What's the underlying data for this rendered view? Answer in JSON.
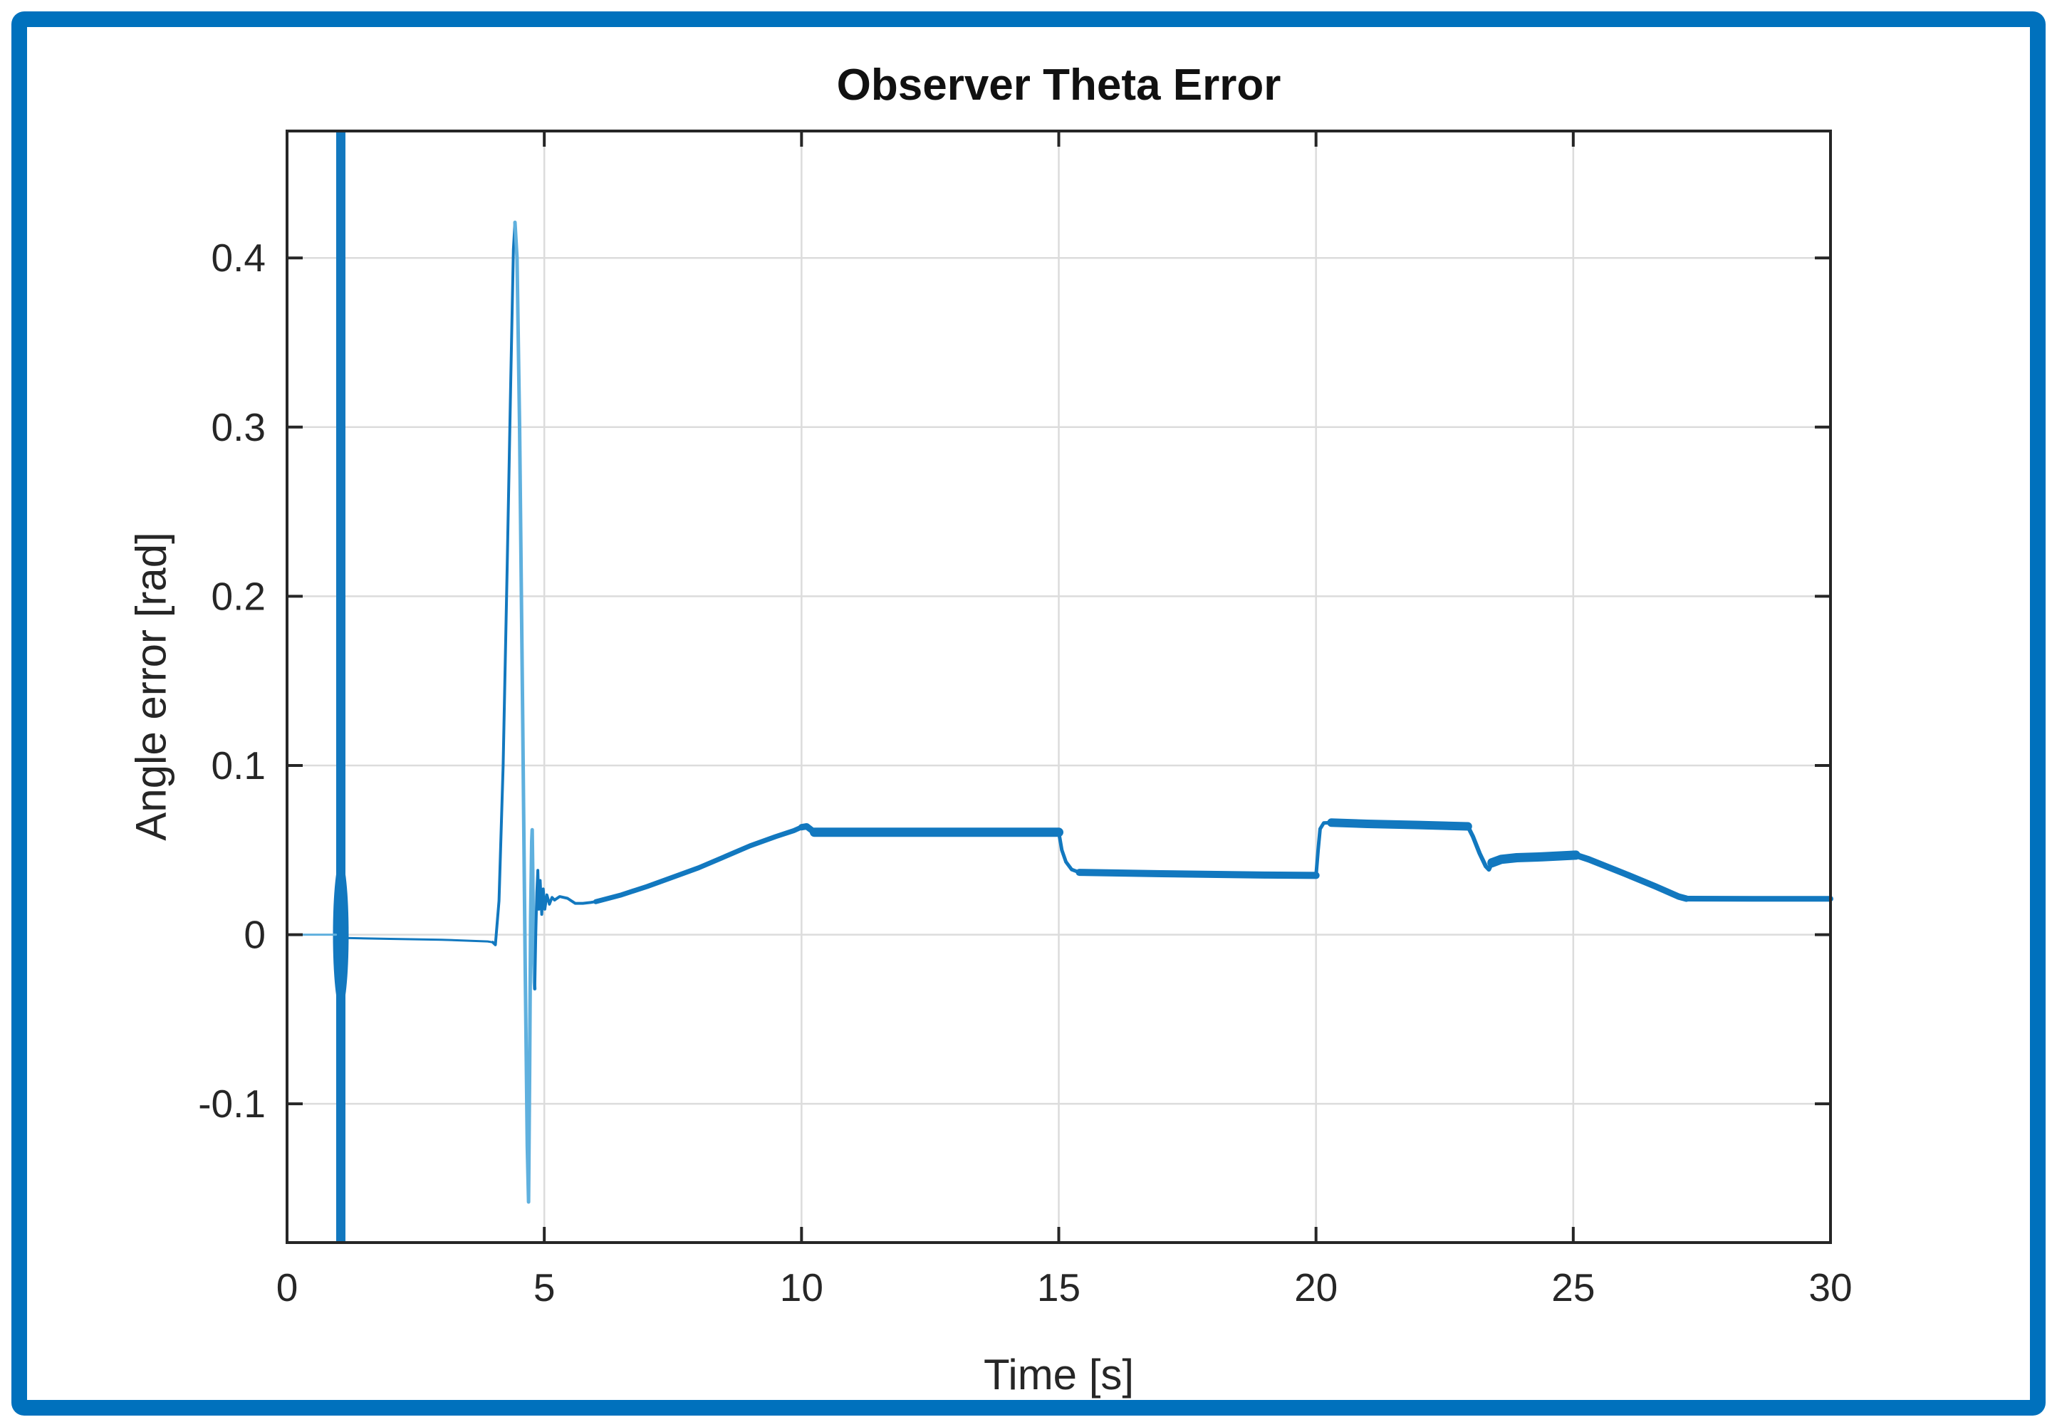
{
  "figure": {
    "title": "Observer Theta Error"
  },
  "colors": {
    "frame_border": "#0071bd",
    "line_main": "#1278bf",
    "line_light": "#5fb0de",
    "axis": "#262626",
    "grid": "#dcdcdc",
    "text": "#262626",
    "background": "#ffffff"
  },
  "chart_data": {
    "type": "line",
    "title": "Observer Theta Error",
    "xlabel": "Time [s]",
    "ylabel": "Angle error [rad]",
    "xlim": [
      0,
      30
    ],
    "ylim": [
      -0.182,
      0.475
    ],
    "xticks": [
      0,
      5,
      10,
      15,
      20,
      25,
      30
    ],
    "yticks": [
      -0.1,
      0,
      0.1,
      0.2,
      0.3,
      0.4
    ],
    "grid": true,
    "legend": "none",
    "events": [
      {
        "type": "impulse",
        "t_start": 0.955,
        "t_end": 1.135,
        "description": "full-range vertical transient spike at t = 1 s"
      }
    ],
    "key_points": {
      "peak": {
        "t": 4.43,
        "value": 0.421
      },
      "undershoot": {
        "t": 4.7,
        "value": -0.158
      },
      "plateau_10_15": 0.0605,
      "plateau_15_20": 0.036,
      "plateau_20_23": 0.065,
      "plateau_23_25": 0.046,
      "final_level": 0.021
    },
    "series": [
      {
        "name": "theta_error",
        "segments": [
          {
            "color": "light",
            "width": 3,
            "points": [
              [
                0,
                0
              ],
              [
                0.95,
                0
              ]
            ]
          },
          {
            "color": "main",
            "width": 3,
            "points": [
              [
                1.14,
                -0.002
              ],
              [
                2.0,
                -0.0025
              ],
              [
                3.0,
                -0.003
              ],
              [
                3.9,
                -0.004
              ],
              [
                4.0,
                -0.0045
              ]
            ]
          },
          {
            "color": "main",
            "width": 4,
            "points": [
              [
                4.0,
                -0.0045
              ],
              [
                4.05,
                -0.006
              ],
              [
                4.12,
                0.02
              ],
              [
                4.2,
                0.1
              ],
              [
                4.28,
                0.22
              ],
              [
                4.35,
                0.33
              ],
              [
                4.4,
                0.405
              ],
              [
                4.43,
                0.421
              ]
            ]
          },
          {
            "color": "light",
            "width": 5,
            "points": [
              [
                4.43,
                0.421
              ],
              [
                4.47,
                0.4
              ],
              [
                4.52,
                0.3
              ],
              [
                4.58,
                0.13
              ],
              [
                4.63,
                -0.02
              ],
              [
                4.67,
                -0.125
              ],
              [
                4.695,
                -0.158
              ],
              [
                4.715,
                -0.08
              ],
              [
                4.735,
                0.01
              ],
              [
                4.755,
                0.055
              ],
              [
                4.765,
                0.062
              ],
              [
                4.775,
                0.04
              ],
              [
                4.79,
                -0.005
              ],
              [
                4.805,
                -0.028
              ],
              [
                4.815,
                -0.032
              ]
            ]
          },
          {
            "color": "main",
            "width": 4,
            "points": [
              [
                4.815,
                -0.032
              ],
              [
                4.835,
                0.0
              ],
              [
                4.855,
                0.025
              ],
              [
                4.875,
                0.038
              ],
              [
                4.895,
                0.015
              ],
              [
                4.92,
                0.032
              ],
              [
                4.95,
                0.012
              ],
              [
                4.98,
                0.027
              ],
              [
                5.01,
                0.015
              ],
              [
                5.05,
                0.0235
              ],
              [
                5.1,
                0.018
              ],
              [
                5.15,
                0.022
              ],
              [
                5.2,
                0.0205
              ]
            ]
          },
          {
            "color": "main",
            "width": 4,
            "points": [
              [
                5.2,
                0.0205
              ],
              [
                5.3,
                0.0225
              ],
              [
                5.45,
                0.0215
              ],
              [
                5.6,
                0.0185
              ],
              [
                5.75,
                0.0185
              ],
              [
                5.9,
                0.019
              ],
              [
                6.0,
                0.0195
              ]
            ]
          },
          {
            "color": "main",
            "width": 7,
            "points": [
              [
                6.0,
                0.0195
              ],
              [
                6.5,
                0.0235
              ],
              [
                7.0,
                0.0285
              ],
              [
                7.5,
                0.034
              ],
              [
                8.0,
                0.0395
              ],
              [
                8.5,
                0.046
              ],
              [
                9.0,
                0.0525
              ],
              [
                9.5,
                0.058
              ],
              [
                9.85,
                0.0615
              ],
              [
                10.0,
                0.0635
              ]
            ]
          },
          {
            "color": "main",
            "width": 9,
            "points": [
              [
                10.0,
                0.0635
              ],
              [
                10.1,
                0.064
              ],
              [
                10.25,
                0.0605
              ]
            ]
          },
          {
            "color": "main",
            "width": 13,
            "points": [
              [
                10.25,
                0.0605
              ],
              [
                12,
                0.0605
              ],
              [
                14,
                0.0605
              ],
              [
                15.0,
                0.0605
              ]
            ]
          },
          {
            "color": "main",
            "width": 5,
            "points": [
              [
                15.0,
                0.0605
              ],
              [
                15.06,
                0.05
              ],
              [
                15.14,
                0.043
              ],
              [
                15.25,
                0.0385
              ],
              [
                15.4,
                0.0368
              ]
            ]
          },
          {
            "color": "main",
            "width": 10,
            "points": [
              [
                15.4,
                0.0368
              ],
              [
                17,
                0.036
              ],
              [
                19,
                0.0352
              ],
              [
                20.0,
                0.035
              ]
            ]
          },
          {
            "color": "main",
            "width": 5,
            "points": [
              [
                20.0,
                0.035
              ],
              [
                20.04,
                0.05
              ],
              [
                20.08,
                0.0625
              ],
              [
                20.15,
                0.066
              ],
              [
                20.3,
                0.0662
              ]
            ]
          },
          {
            "color": "main",
            "width": 12,
            "points": [
              [
                20.3,
                0.0662
              ],
              [
                21,
                0.0655
              ],
              [
                22,
                0.0648
              ],
              [
                22.95,
                0.064
              ]
            ]
          },
          {
            "color": "main",
            "width": 6,
            "points": [
              [
                22.95,
                0.064
              ],
              [
                23.05,
                0.058
              ],
              [
                23.18,
                0.048
              ],
              [
                23.3,
                0.0405
              ],
              [
                23.36,
                0.0385
              ],
              [
                23.42,
                0.0425
              ]
            ]
          },
          {
            "color": "main",
            "width": 13,
            "points": [
              [
                23.42,
                0.0425
              ],
              [
                23.6,
                0.0445
              ],
              [
                23.9,
                0.0455
              ],
              [
                24.4,
                0.046
              ],
              [
                25.05,
                0.047
              ]
            ]
          },
          {
            "color": "main",
            "width": 9,
            "points": [
              [
                25.05,
                0.047
              ],
              [
                25.3,
                0.0445
              ],
              [
                26,
                0.036
              ],
              [
                26.6,
                0.0285
              ],
              [
                27.05,
                0.0225
              ],
              [
                27.2,
                0.0213
              ]
            ]
          },
          {
            "color": "main",
            "width": 8,
            "points": [
              [
                27.2,
                0.0213
              ],
              [
                28.5,
                0.0212
              ],
              [
                30,
                0.0212
              ]
            ]
          }
        ]
      }
    ]
  }
}
